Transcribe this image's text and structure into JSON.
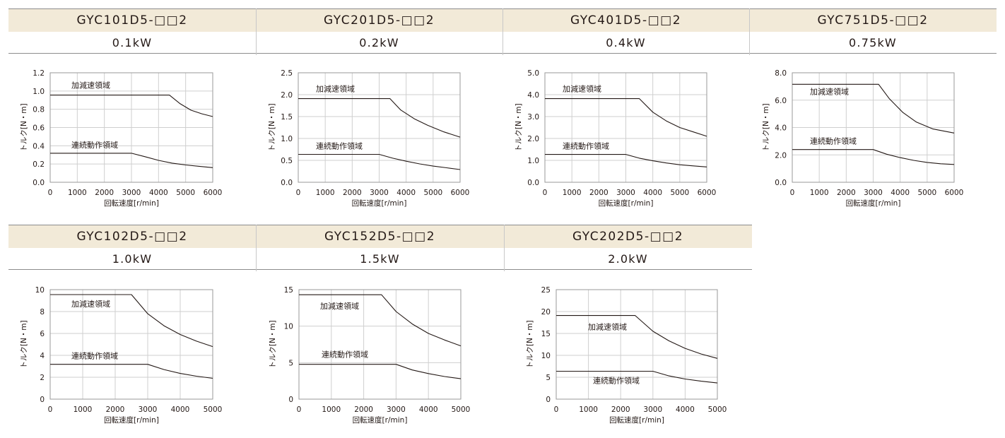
{
  "colors": {
    "header_bg": "#f2ead8",
    "line": "#231815",
    "grid": "#cfcfcf"
  },
  "chart_data": [
    {
      "type": "line",
      "model": "GYC101D5-□□2",
      "power": "0.1kW",
      "xlabel": "回転速度[r/min]",
      "ylabel": "トルク[N・m]",
      "xlim": [
        0,
        6000
      ],
      "ylim": [
        0,
        1.2
      ],
      "xticks": [
        0,
        1000,
        2000,
        3000,
        4000,
        5000,
        6000
      ],
      "yticks": [
        "0.0",
        "0.2",
        "0.4",
        "0.6",
        "0.8",
        "1.0",
        "1.2"
      ],
      "grid": true,
      "series": [
        {
          "name": "加減速領域",
          "x": [
            0,
            4400,
            4800,
            5200,
            5600,
            6000
          ],
          "y": [
            0.955,
            0.955,
            0.86,
            0.79,
            0.75,
            0.72
          ]
        },
        {
          "name": "連続動作領域",
          "x": [
            0,
            3000,
            3500,
            4000,
            4500,
            5000,
            5500,
            6000
          ],
          "y": [
            0.318,
            0.318,
            0.28,
            0.24,
            0.21,
            0.19,
            0.175,
            0.16
          ]
        }
      ]
    },
    {
      "type": "line",
      "model": "GYC201D5-□□2",
      "power": "0.2kW",
      "xlabel": "回転速度[r/min]",
      "ylabel": "トルク[N・m]",
      "xlim": [
        0,
        6000
      ],
      "ylim": [
        0,
        2.5
      ],
      "xticks": [
        0,
        1000,
        2000,
        3000,
        4000,
        5000,
        6000
      ],
      "yticks": [
        "0.0",
        "0.5",
        "1.0",
        "1.5",
        "2.0",
        "2.5"
      ],
      "grid": true,
      "series": [
        {
          "name": "加減速領域",
          "x": [
            0,
            3400,
            3800,
            4300,
            4800,
            5400,
            6000
          ],
          "y": [
            1.91,
            1.91,
            1.65,
            1.45,
            1.3,
            1.15,
            1.03
          ]
        },
        {
          "name": "連続動作領域",
          "x": [
            0,
            3000,
            3500,
            4000,
            4500,
            5000,
            5500,
            6000
          ],
          "y": [
            0.637,
            0.637,
            0.55,
            0.48,
            0.42,
            0.37,
            0.33,
            0.29
          ]
        }
      ]
    },
    {
      "type": "line",
      "model": "GYC401D5-□□2",
      "power": "0.4kW",
      "xlabel": "回転速度[r/min]",
      "ylabel": "トルク[N・m]",
      "xlim": [
        0,
        6000
      ],
      "ylim": [
        0,
        5.0
      ],
      "xticks": [
        0,
        1000,
        2000,
        3000,
        4000,
        5000,
        6000
      ],
      "yticks": [
        "0.0",
        "1.0",
        "2.0",
        "3.0",
        "4.0",
        "5.0"
      ],
      "grid": true,
      "series": [
        {
          "name": "加減速領域",
          "x": [
            0,
            3500,
            4000,
            4500,
            5000,
            5500,
            6000
          ],
          "y": [
            3.82,
            3.82,
            3.2,
            2.8,
            2.5,
            2.3,
            2.1
          ]
        },
        {
          "name": "連続動作領域",
          "x": [
            0,
            3000,
            3500,
            4000,
            4500,
            5000,
            5500,
            6000
          ],
          "y": [
            1.27,
            1.27,
            1.1,
            0.98,
            0.88,
            0.8,
            0.75,
            0.7
          ]
        }
      ]
    },
    {
      "type": "line",
      "model": "GYC751D5-□□2",
      "power": "0.75kW",
      "xlabel": "回転速度[r/min]",
      "ylabel": "トルク[N・m]",
      "xlim": [
        0,
        6000
      ],
      "ylim": [
        0,
        8.0
      ],
      "xticks": [
        0,
        1000,
        2000,
        3000,
        4000,
        5000,
        6000
      ],
      "yticks": [
        "0.0",
        "2.0",
        "4.0",
        "6.0",
        "8.0"
      ],
      "grid": true,
      "series": [
        {
          "name": "加減速領域",
          "x": [
            0,
            3200,
            3600,
            4100,
            4600,
            5200,
            6000
          ],
          "y": [
            7.16,
            7.16,
            6.1,
            5.1,
            4.4,
            3.9,
            3.6
          ]
        },
        {
          "name": "連続動作領域",
          "x": [
            0,
            3000,
            3500,
            4000,
            4500,
            5000,
            5500,
            6000
          ],
          "y": [
            2.39,
            2.39,
            2.05,
            1.8,
            1.6,
            1.45,
            1.35,
            1.3
          ]
        }
      ]
    },
    {
      "type": "line",
      "model": "GYC102D5-□□2",
      "power": "1.0kW",
      "xlabel": "回転速度[r/min]",
      "ylabel": "トルク[N・m]",
      "xlim": [
        0,
        5000
      ],
      "ylim": [
        0,
        10
      ],
      "xticks": [
        0,
        1000,
        2000,
        3000,
        4000,
        5000
      ],
      "yticks": [
        "0",
        "2",
        "4",
        "6",
        "8",
        "10"
      ],
      "grid": true,
      "series": [
        {
          "name": "加減速領域",
          "x": [
            0,
            2500,
            3000,
            3500,
            4000,
            4500,
            5000
          ],
          "y": [
            9.55,
            9.55,
            7.8,
            6.7,
            5.9,
            5.3,
            4.8
          ]
        },
        {
          "name": "連続動作領域",
          "x": [
            0,
            3000,
            3500,
            4000,
            4500,
            5000
          ],
          "y": [
            3.18,
            3.18,
            2.7,
            2.35,
            2.1,
            1.9
          ]
        }
      ]
    },
    {
      "type": "line",
      "model": "GYC152D5-□□2",
      "power": "1.5kW",
      "xlabel": "回転速度[r/min]",
      "ylabel": "トルク[N・m]",
      "xlim": [
        0,
        5000
      ],
      "ylim": [
        0,
        15
      ],
      "xticks": [
        0,
        1000,
        2000,
        3000,
        4000,
        5000
      ],
      "yticks": [
        "0",
        "5",
        "10",
        "15"
      ],
      "grid": true,
      "series": [
        {
          "name": "加減速領域",
          "x": [
            0,
            2550,
            3000,
            3500,
            4000,
            4500,
            5000
          ],
          "y": [
            14.3,
            14.3,
            12.0,
            10.3,
            9.0,
            8.1,
            7.3
          ]
        },
        {
          "name": "連続動作領域",
          "x": [
            0,
            3000,
            3500,
            4000,
            4500,
            5000
          ],
          "y": [
            4.77,
            4.77,
            4.0,
            3.5,
            3.1,
            2.8
          ]
        }
      ]
    },
    {
      "type": "line",
      "model": "GYC202D5-□□2",
      "power": "2.0kW",
      "xlabel": "回転速度[r/min]",
      "ylabel": "トルク[N・m]",
      "xlim": [
        0,
        5000
      ],
      "ylim": [
        0,
        25
      ],
      "xticks": [
        0,
        1000,
        2000,
        3000,
        4000,
        5000
      ],
      "yticks": [
        "0",
        "5",
        "10",
        "15",
        "20",
        "25"
      ],
      "grid": true,
      "series": [
        {
          "name": "加減速領域",
          "x": [
            0,
            2450,
            3000,
            3500,
            4000,
            4500,
            5000
          ],
          "y": [
            19.1,
            19.1,
            15.5,
            13.3,
            11.6,
            10.3,
            9.3
          ]
        },
        {
          "name": "連続動作領域",
          "x": [
            0,
            3000,
            3500,
            4000,
            4500,
            5000
          ],
          "y": [
            6.37,
            6.37,
            5.3,
            4.6,
            4.1,
            3.7
          ]
        }
      ]
    }
  ]
}
